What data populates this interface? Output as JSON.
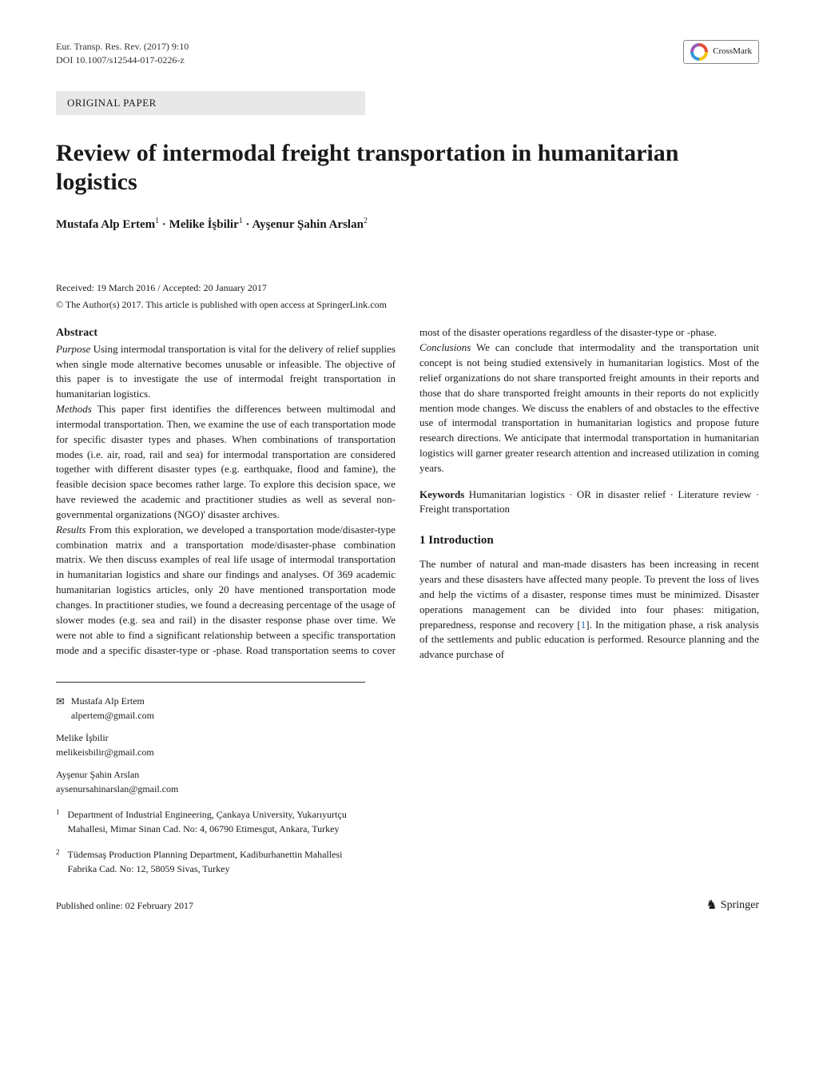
{
  "header": {
    "journal_line1": "Eur. Transp. Res. Rev. (2017) 9:10",
    "journal_line2": "DOI 10.1007/s12544-017-0226-z",
    "crossmark_label": "CrossMark"
  },
  "paper_type": "ORIGINAL PAPER",
  "title": "Review of intermodal freight transportation in humanitarian logistics",
  "authors_html": "Mustafa Alp Ertem",
  "authors": {
    "a1": {
      "name": "Mustafa Alp Ertem",
      "sup": "1"
    },
    "sep1": " · ",
    "a2": {
      "name": "Melike İşbilir",
      "sup": "1"
    },
    "sep2": " · ",
    "a3": {
      "name": "Ayşenur Şahin Arslan",
      "sup": "2"
    }
  },
  "dates": "Received: 19 March 2016 / Accepted: 20 January 2017",
  "copyright": "© The Author(s) 2017. This article is published with open access at SpringerLink.com",
  "abstract": {
    "heading": "Abstract",
    "purpose_label": "Purpose",
    "purpose_text": " Using intermodal transportation is vital for the delivery of relief supplies when single mode alternative becomes unusable or infeasible. The objective of this paper is to investigate the use of intermodal freight transportation in humanitarian logistics.",
    "methods_label": "Methods",
    "methods_text": " This paper first identifies the differences between multimodal and intermodal transportation. Then, we examine the use of each transportation mode for specific disaster types and phases. When combinations of transportation modes (i.e. air, road, rail and sea) for intermodal transportation are considered together with different disaster types (e.g. earthquake, flood and famine), the feasible decision space becomes rather large. To explore this decision space, we have reviewed the academic and practitioner studies as well as several non-governmental organizations (NGO)' disaster archives.",
    "results_label": "Results",
    "results_text": " From this exploration, we developed a transportation mode/disaster-type combination matrix and a transportation mode/disaster-phase combination matrix. We then discuss examples of real life usage of intermodal transportation in humanitarian logistics and share our findings and analyses. Of 369 academic humanitarian logistics articles, only 20 have mentioned transportation mode changes. In practitioner studies, we found a decreasing percentage of the usage of slower modes (e.g. sea and rail) in the disaster response phase over time. We were not able to find a significant relationship between a specific transportation mode and a specific disaster-type or -phase. Road transportation seems to cover most of the disaster operations regardless of the disaster-type or -phase.",
    "conclusions_label": "Conclusions",
    "conclusions_text": " We can conclude that intermodality and the transportation unit concept is not being studied extensively in humanitarian logistics. Most of the relief organizations do not share transported freight amounts in their reports and those that do share transported freight amounts in their reports do not explicitly mention mode changes. We discuss the enablers of and obstacles to the effective use of intermodal transportation in humanitarian logistics and propose future research directions. We anticipate that intermodal transportation in humanitarian logistics will garner greater research attention and increased utilization in coming years."
  },
  "keywords": {
    "label": "Keywords",
    "text": " Humanitarian logistics · OR in disaster relief · Literature review · Freight transportation"
  },
  "correspondence": {
    "corr_name": "Mustafa Alp Ertem",
    "corr_email": "alpertem@gmail.com",
    "a2_name": "Melike İşbilir",
    "a2_email": "melikeisbilir@gmail.com",
    "a3_name": "Ayşenur Şahin Arslan",
    "a3_email": "aysenursahinarslan@gmail.com"
  },
  "affiliations": {
    "aff1_num": "1",
    "aff1_text": "Department of Industrial Engineering, Çankaya University, Yukarıyurtçu Mahallesi, Mimar Sinan Cad. No: 4, 06790 Etimesgut, Ankara, Turkey",
    "aff2_num": "2",
    "aff2_text": "Tüdemsaş Production Planning Department, Kadiburhanettin Mahallesi Fabrika Cad. No: 12, 58059 Sivas, Turkey"
  },
  "intro": {
    "heading": "1 Introduction",
    "text_pre": "The number of natural and man-made disasters has been increasing in recent years and these disasters have affected many people. To prevent the loss of lives and help the victims of a disaster, response times must be minimized. Disaster operations management can be divided into four phases: mitigation, preparedness, response and recovery [",
    "ref1": "1",
    "text_post": "]. In the mitigation phase, a risk analysis of the settlements and public education is performed. Resource planning and the advance purchase of"
  },
  "footer": {
    "pub_online": "Published online: 02 February 2017",
    "publisher": "Springer"
  },
  "colors": {
    "text": "#1a1a1a",
    "link": "#1a5fb4",
    "bar_bg": "#e8e8e8",
    "background": "#ffffff"
  },
  "typography": {
    "body_fontsize_pt": 10,
    "title_fontsize_pt": 22,
    "font_family": "Times New Roman"
  }
}
